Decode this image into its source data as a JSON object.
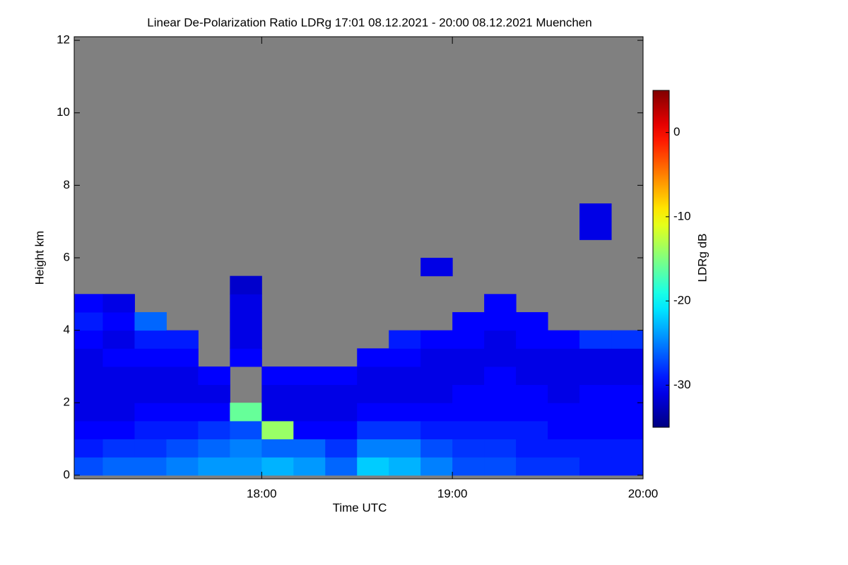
{
  "chart_data": {
    "type": "heatmap",
    "title": "Linear De-Polarization Ratio LDRg   17:01 08.12.2021 - 20:00 08.12.2021 Muenchen",
    "x_label": "Time UTC",
    "y_label": "Height km",
    "colorbar_label": "LDRg dB",
    "x_bins": [
      17.0167,
      17.1667,
      17.3333,
      17.5,
      17.6667,
      17.8333,
      18,
      18.1667,
      18.3333,
      18.5,
      18.6667,
      18.8333,
      19,
      19.1667,
      19.3333,
      19.5,
      19.6667,
      19.8333,
      20
    ],
    "y_bins": [
      0,
      0.5,
      1,
      1.5,
      2,
      2.5,
      3,
      3.5,
      4,
      4.5,
      5,
      5.5,
      6,
      6.5,
      7,
      7.5
    ],
    "z": [
      [
        -27,
        -29,
        -30,
        -31,
        -31,
        -31,
        -31,
        -30,
        -29,
        -30,
        null,
        null,
        null,
        null,
        null
      ],
      [
        -26,
        -28,
        -30,
        -31,
        -31,
        -31,
        -30,
        -31,
        -30,
        -31,
        null,
        null,
        null,
        null,
        null
      ],
      [
        -26,
        -28,
        -29,
        -30,
        -31,
        -31,
        -30,
        -29,
        -26,
        null,
        null,
        null,
        null,
        null,
        null
      ],
      [
        -25,
        -27,
        -29,
        -30,
        -31,
        -31,
        -30,
        -29,
        null,
        null,
        null,
        null,
        null,
        null,
        null
      ],
      [
        -24,
        -26,
        -28,
        -30,
        -31,
        -30,
        null,
        null,
        null,
        null,
        null,
        null,
        null,
        null,
        null
      ],
      [
        -24,
        -25,
        -27,
        -16,
        null,
        null,
        -30,
        -31,
        -31,
        -31,
        -32,
        null,
        null,
        null,
        null
      ],
      [
        -23,
        -26,
        -14,
        -31,
        -31,
        -30,
        null,
        null,
        null,
        null,
        null,
        null,
        null,
        null,
        null
      ],
      [
        -24,
        -26,
        -30,
        -31,
        -31,
        -30,
        null,
        null,
        null,
        null,
        null,
        null,
        null,
        null,
        null
      ],
      [
        -26,
        -28,
        -30,
        -31,
        -31,
        -30,
        null,
        null,
        null,
        null,
        null,
        null,
        null,
        null,
        null
      ],
      [
        -22,
        -25,
        -28,
        -30,
        -31,
        -31,
        -30,
        null,
        null,
        null,
        null,
        null,
        null,
        null,
        null
      ],
      [
        -23,
        -25,
        -28,
        -30,
        -31,
        -31,
        -30,
        -29,
        null,
        null,
        null,
        null,
        null,
        null,
        null
      ],
      [
        -25,
        -27,
        -29,
        -30,
        -31,
        -31,
        -31,
        -30,
        null,
        null,
        null,
        -31,
        null,
        null,
        null
      ],
      [
        -27,
        -28,
        -29,
        -30,
        -30,
        -31,
        -31,
        -30,
        -30,
        null,
        null,
        null,
        null,
        null,
        null
      ],
      [
        -27,
        -28,
        -29,
        -30,
        -30,
        -30,
        -31,
        -31,
        -30,
        -30,
        null,
        null,
        null,
        null,
        null
      ],
      [
        -28,
        -29,
        -29,
        -30,
        -30,
        -31,
        -31,
        -30,
        -30,
        null,
        null,
        null,
        null,
        null,
        null
      ],
      [
        -28,
        -29,
        -30,
        -30,
        -31,
        -31,
        -31,
        -30,
        null,
        null,
        null,
        null,
        null,
        null,
        null
      ],
      [
        -29,
        -29,
        -30,
        -30,
        -30,
        -31,
        -31,
        -28,
        null,
        null,
        null,
        null,
        null,
        -31,
        -31
      ],
      [
        -29,
        -29,
        -30,
        -30,
        -30,
        -31,
        -31,
        -28,
        null,
        null,
        null,
        null,
        null,
        null,
        null
      ]
    ],
    "no_data_color": "#808080",
    "colormap": "jet",
    "xlim": [
      17.0167,
      20.0
    ],
    "xticks": [
      {
        "value": 18,
        "label": "18:00"
      },
      {
        "value": 19,
        "label": "19:00"
      },
      {
        "value": 20,
        "label": "20:00"
      }
    ],
    "ylim": [
      -0.1,
      12.1
    ],
    "yticks": [
      0,
      2,
      4,
      6,
      8,
      10,
      12
    ],
    "clim": [
      -35,
      5
    ],
    "cticks": [
      0,
      -10,
      -20,
      -30
    ]
  }
}
